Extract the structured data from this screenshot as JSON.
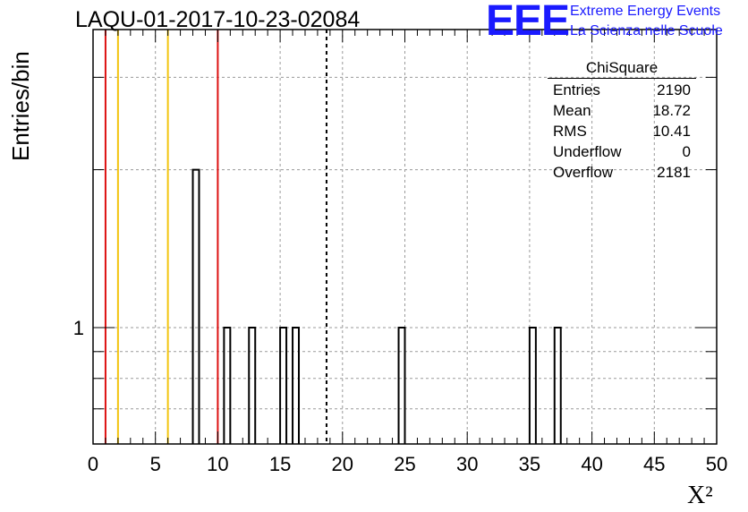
{
  "title": "LAQU-01-2017-10-23-02084",
  "logo": {
    "mark": "EEE",
    "line1": "Extreme Energy Events",
    "line2": "La Scienza nelle Scuole"
  },
  "stats_box": {
    "title": "ChiSquare",
    "rows": [
      {
        "label": "Entries",
        "value": "2190"
      },
      {
        "label": "Mean",
        "value": "18.72"
      },
      {
        "label": "RMS",
        "value": "10.41"
      },
      {
        "label": "Underflow",
        "value": "0"
      },
      {
        "label": "Overflow",
        "value": "2181"
      }
    ]
  },
  "colors": {
    "red_line": "#dd1111",
    "yellow_line": "#f2c40f",
    "bars": "#000000",
    "grid": "#9a9a9a"
  },
  "chart_data": {
    "type": "bar",
    "title": "LAQU-01-2017-10-23-02084",
    "xlabel": "X²",
    "ylabel": "Entries/bin",
    "x_axis": {
      "min": 0,
      "max": 50,
      "ticks": [
        0,
        5,
        10,
        15,
        20,
        25,
        30,
        35,
        40,
        45,
        50
      ]
    },
    "y_axis": {
      "scale": "log",
      "min": 0.6,
      "max": 3.7,
      "tick_labels": [
        {
          "value": 1,
          "label": "1"
        }
      ]
    },
    "grid": true,
    "bin_width": 0.5,
    "bins": [
      {
        "x_low": 8.0,
        "x_high": 8.5,
        "value": 2
      },
      {
        "x_low": 10.5,
        "x_high": 11.0,
        "value": 1
      },
      {
        "x_low": 12.5,
        "x_high": 13.0,
        "value": 1
      },
      {
        "x_low": 15.0,
        "x_high": 15.5,
        "value": 1
      },
      {
        "x_low": 16.0,
        "x_high": 16.5,
        "value": 1
      },
      {
        "x_low": 24.5,
        "x_high": 25.0,
        "value": 1
      },
      {
        "x_low": 35.0,
        "x_high": 35.5,
        "value": 1
      },
      {
        "x_low": 37.0,
        "x_high": 37.5,
        "value": 1
      }
    ],
    "reference_lines": [
      {
        "x": 1.0,
        "color": "red"
      },
      {
        "x": 2.0,
        "color": "yellow"
      },
      {
        "x": 6.0,
        "color": "yellow"
      },
      {
        "x": 10.0,
        "color": "red"
      },
      {
        "x": 18.72,
        "color": "black",
        "style": "dashed"
      }
    ]
  }
}
